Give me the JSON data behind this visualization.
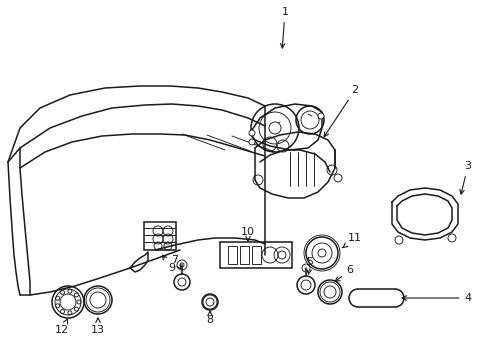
{
  "bg_color": "#ffffff",
  "line_color": "#1a1a1a",
  "lw_main": 1.1,
  "lw_thin": 0.65,
  "label_fontsize": 8.0,
  "figsize": [
    4.89,
    3.6
  ],
  "dpi": 100
}
